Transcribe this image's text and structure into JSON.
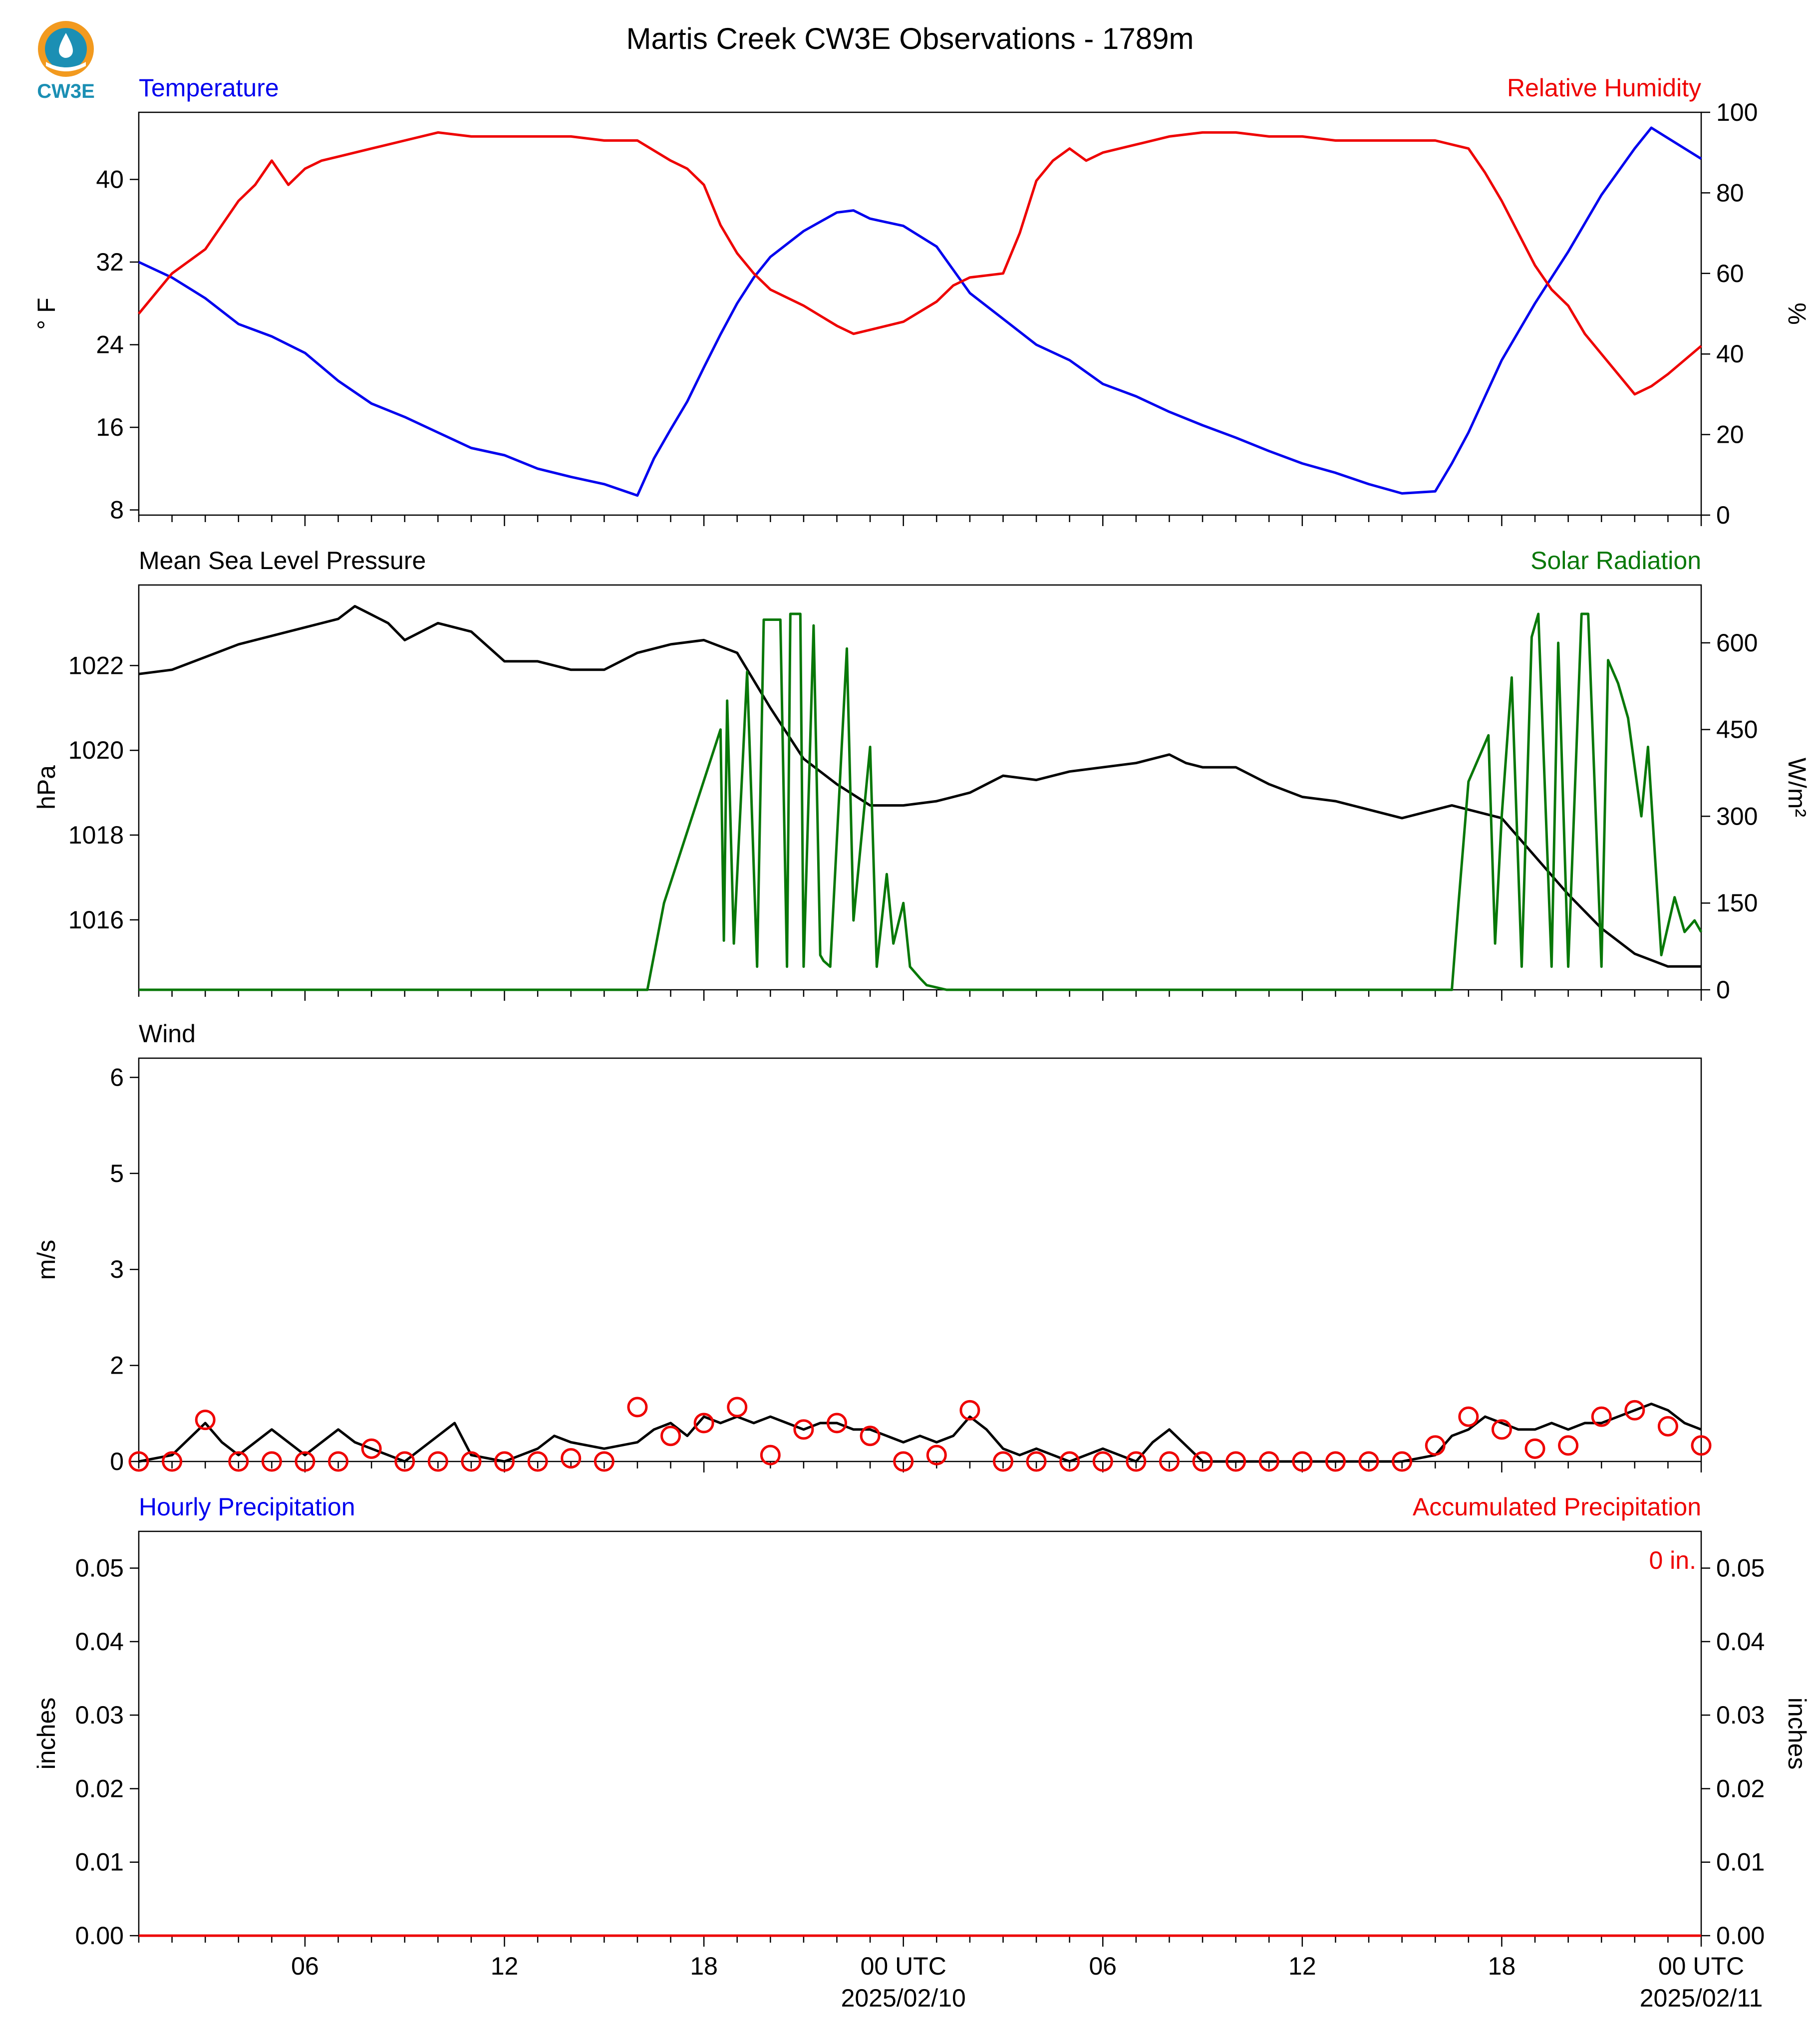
{
  "title": "Martis Creek CW3E Observations - 1789m",
  "logo": {
    "text": "CW3E",
    "color": "#1b8fb4",
    "accent": "#f29a1f"
  },
  "colors": {
    "temp": "#0000ee",
    "rh": "#ee0000",
    "pressure": "#000000",
    "solar": "#087808",
    "wind": "#000000",
    "gust": "#ee0000",
    "precip": "#ee0000"
  },
  "x_axis": {
    "start_hour": 1,
    "end_hour": 48,
    "ticks": [
      {
        "h": 6,
        "label": "06"
      },
      {
        "h": 12,
        "label": "12"
      },
      {
        "h": 18,
        "label": "18"
      },
      {
        "h": 24,
        "label": "00 UTC",
        "sub": "2025/02/10"
      },
      {
        "h": 30,
        "label": "06"
      },
      {
        "h": 36,
        "label": "12"
      },
      {
        "h": 42,
        "label": "18"
      },
      {
        "h": 48,
        "label": "00 UTC",
        "sub": "2025/02/11"
      }
    ]
  },
  "chart_data": [
    {
      "type": "line",
      "left_title": "Temperature",
      "right_title": "Relative Humidity",
      "ylabel": "° F",
      "y2label": "%",
      "ylim": [
        7.5,
        46.5
      ],
      "yticks": [
        8,
        16,
        24,
        32,
        40
      ],
      "y2lim": [
        0,
        100
      ],
      "y2ticks": [
        0,
        20,
        40,
        60,
        80,
        100
      ],
      "series": [
        {
          "name": "Temperature",
          "axis": "left",
          "color": "#0000ee",
          "x": [
            1,
            2,
            3,
            4,
            5,
            6,
            7,
            8,
            9,
            10,
            11,
            12,
            13,
            14,
            15,
            16,
            16.5,
            17,
            17.5,
            18,
            18.5,
            19,
            19.5,
            20,
            21,
            22,
            22.5,
            23,
            24,
            25,
            26,
            27,
            28,
            29,
            30,
            31,
            32,
            33,
            34,
            35,
            36,
            37,
            38,
            39,
            40,
            40.5,
            41,
            41.5,
            42,
            43,
            44,
            45,
            46,
            46.5,
            47,
            48
          ],
          "y": [
            32,
            30.5,
            28.5,
            26,
            24.8,
            23.2,
            20.5,
            18.3,
            17,
            15.5,
            14,
            13.3,
            12,
            11.2,
            10.5,
            9.4,
            13,
            15.8,
            18.5,
            21.8,
            25,
            28,
            30.5,
            32.5,
            35,
            36.8,
            37,
            36.2,
            35.5,
            33.5,
            29,
            26.5,
            24,
            22.5,
            20.2,
            19,
            17.5,
            16.2,
            15,
            13.7,
            12.5,
            11.6,
            10.5,
            9.6,
            9.8,
            12.5,
            15.5,
            19,
            22.5,
            28,
            33,
            38.5,
            43,
            45,
            44,
            42
          ]
        },
        {
          "name": "Relative Humidity",
          "axis": "right",
          "color": "#ee0000",
          "x": [
            1,
            1.5,
            2,
            2.5,
            3,
            3.5,
            4,
            4.5,
            5,
            5.5,
            6,
            6.5,
            7,
            8,
            9,
            10,
            11,
            12,
            13,
            14,
            15,
            16,
            17,
            17.5,
            18,
            18.5,
            19,
            19.5,
            20,
            21,
            22,
            22.5,
            23,
            24,
            25,
            25.5,
            26,
            27,
            27.5,
            28,
            28.5,
            29,
            29.5,
            30,
            31,
            32,
            33,
            34,
            35,
            36,
            37,
            38,
            39,
            40,
            41,
            41.5,
            42,
            42.5,
            43,
            43.5,
            44,
            44.5,
            45,
            45.5,
            46,
            46.5,
            47,
            48
          ],
          "y": [
            50,
            55,
            60,
            63,
            66,
            72,
            78,
            82,
            88,
            82,
            86,
            88,
            89,
            91,
            93,
            95,
            94,
            94,
            94,
            94,
            93,
            93,
            88,
            86,
            82,
            72,
            65,
            60,
            56,
            52,
            47,
            45,
            46,
            48,
            53,
            57,
            59,
            60,
            70,
            83,
            88,
            91,
            88,
            90,
            92,
            94,
            95,
            95,
            94,
            94,
            93,
            93,
            93,
            93,
            91,
            85,
            78,
            70,
            62,
            56,
            52,
            45,
            40,
            35,
            30,
            32,
            35,
            42
          ]
        }
      ]
    },
    {
      "type": "line",
      "left_title": "Mean Sea Level Pressure",
      "right_title": "Solar Radiation",
      "ylabel": "hPa",
      "y2label": "W/m²",
      "ylim": [
        1014.35,
        1023.9
      ],
      "yticks": [
        1016,
        1018,
        1020,
        1022
      ],
      "y2lim": [
        0,
        700
      ],
      "y2ticks": [
        0,
        150,
        300,
        450,
        600
      ],
      "series": [
        {
          "name": "Mean Sea Level Pressure",
          "axis": "left",
          "color": "#000000",
          "x": [
            1,
            2,
            3,
            4,
            5,
            6,
            7,
            7.5,
            8,
            8.5,
            9,
            10,
            11,
            12,
            13,
            14,
            15,
            16,
            17,
            18,
            19,
            20,
            21,
            22,
            23,
            24,
            25,
            26,
            27,
            28,
            29,
            30,
            31,
            32,
            32.5,
            33,
            34,
            35,
            36,
            37,
            38,
            39,
            40,
            40.5,
            41,
            42,
            43,
            44,
            45,
            46,
            47,
            48
          ],
          "y": [
            1021.8,
            1021.9,
            1022.2,
            1022.5,
            1022.7,
            1022.9,
            1023.1,
            1023.4,
            1023.2,
            1023.0,
            1022.6,
            1023.0,
            1022.8,
            1022.1,
            1022.1,
            1021.9,
            1021.9,
            1022.3,
            1022.5,
            1022.6,
            1022.3,
            1021.0,
            1019.8,
            1019.2,
            1018.7,
            1018.7,
            1018.8,
            1019.0,
            1019.4,
            1019.3,
            1019.5,
            1019.6,
            1019.7,
            1019.9,
            1019.7,
            1019.6,
            1019.6,
            1019.2,
            1018.9,
            1018.8,
            1018.6,
            1018.4,
            1018.6,
            1018.7,
            1018.6,
            1018.4,
            1017.5,
            1016.6,
            1015.8,
            1015.2,
            1014.9,
            1014.9
          ]
        },
        {
          "name": "Solar Radiation",
          "axis": "right",
          "color": "#087808",
          "x": [
            1,
            16.3,
            16.8,
            18.5,
            18.6,
            18.7,
            18.9,
            19.3,
            19.6,
            19.8,
            20.3,
            20.5,
            20.6,
            20.9,
            21.0,
            21.3,
            21.5,
            21.6,
            21.8,
            22.3,
            22.5,
            23.0,
            23.2,
            23.5,
            23.7,
            24.0,
            24.2,
            24.5,
            24.7,
            25.3,
            26.5,
            40.5,
            40.7,
            41.0,
            41.6,
            41.8,
            42.0,
            42.3,
            42.6,
            42.9,
            43.1,
            43.5,
            43.7,
            44.0,
            44.4,
            44.6,
            45.0,
            45.2,
            45.5,
            45.8,
            46.2,
            46.4,
            46.8,
            47.2,
            47.5,
            47.8,
            48
          ],
          "y": [
            0,
            0,
            150,
            450,
            85,
            500,
            80,
            550,
            40,
            640,
            640,
            40,
            650,
            650,
            40,
            630,
            60,
            50,
            40,
            590,
            120,
            420,
            40,
            200,
            80,
            150,
            40,
            20,
            8,
            0,
            0,
            0,
            150,
            360,
            440,
            80,
            300,
            540,
            40,
            610,
            650,
            40,
            600,
            40,
            650,
            650,
            40,
            570,
            530,
            470,
            300,
            420,
            60,
            160,
            100,
            120,
            100
          ]
        }
      ]
    },
    {
      "type": "line",
      "left_title": "Wind",
      "right_title": "",
      "ylabel": "m/s",
      "ylim": [
        0,
        6.3
      ],
      "yticks": [
        0.0,
        1.5,
        3.0,
        4.5,
        6.0
      ],
      "series": [
        {
          "name": "Wind",
          "axis": "left",
          "color": "#000000",
          "x": [
            1,
            2,
            3,
            3.5,
            4,
            5,
            5.5,
            6,
            7,
            7.5,
            8,
            9,
            10,
            10.5,
            11,
            12,
            13,
            13.5,
            14,
            15,
            16,
            16.5,
            17,
            17.5,
            18,
            18.5,
            19,
            19.5,
            20,
            20.5,
            21,
            21.5,
            22,
            22.5,
            23,
            23.5,
            24,
            24.5,
            25,
            25.5,
            26,
            26.5,
            27,
            27.5,
            28,
            29,
            30,
            31,
            31.5,
            32,
            33,
            34,
            35,
            36,
            37,
            38,
            39,
            40,
            40.5,
            41,
            41.5,
            42,
            42.5,
            43,
            43.5,
            44,
            44.5,
            45,
            45.5,
            46,
            46.5,
            47,
            47.5,
            48
          ],
          "y": [
            0,
            0.1,
            0.6,
            0.3,
            0.1,
            0.5,
            0.3,
            0.1,
            0.5,
            0.3,
            0.2,
            0,
            0.4,
            0.6,
            0.1,
            0,
            0.2,
            0.4,
            0.3,
            0.2,
            0.3,
            0.5,
            0.6,
            0.4,
            0.7,
            0.6,
            0.7,
            0.6,
            0.7,
            0.6,
            0.5,
            0.6,
            0.6,
            0.5,
            0.5,
            0.4,
            0.3,
            0.4,
            0.3,
            0.4,
            0.7,
            0.5,
            0.2,
            0.1,
            0.2,
            0,
            0.2,
            0,
            0.3,
            0.5,
            0,
            0,
            0,
            0,
            0,
            0,
            0,
            0.1,
            0.4,
            0.5,
            0.7,
            0.6,
            0.5,
            0.5,
            0.6,
            0.5,
            0.6,
            0.6,
            0.7,
            0.8,
            0.9,
            0.8,
            0.6,
            0.5
          ]
        },
        {
          "name": "Gust",
          "axis": "left",
          "color": "#ee0000",
          "x": [
            1,
            2,
            3,
            4,
            5,
            6,
            7,
            8,
            9,
            10,
            11,
            12,
            13,
            14,
            15,
            16,
            17,
            18,
            19,
            20,
            21,
            22,
            23,
            24,
            25,
            26,
            27,
            28,
            29,
            30,
            31,
            32,
            33,
            34,
            35,
            36,
            37,
            38,
            39,
            40,
            41,
            42,
            43,
            44,
            45,
            46,
            47,
            48
          ],
          "y": [
            0,
            0,
            0.65,
            0,
            0,
            0,
            0,
            0.2,
            0,
            0,
            0,
            0,
            0,
            0.05,
            0,
            0.85,
            0.4,
            0.6,
            0.85,
            0.1,
            0.5,
            0.6,
            0.4,
            0,
            0.1,
            0.8,
            0,
            0,
            0,
            0,
            0,
            0,
            0,
            0,
            0,
            0,
            0,
            0,
            0,
            0.25,
            0.7,
            0.5,
            0.2,
            0.25,
            0.7,
            0.8,
            0.55,
            0.25
          ]
        }
      ]
    },
    {
      "type": "line",
      "left_title": "Hourly Precipitation",
      "right_title": "Accumulated Precipitation",
      "ylabel": "inches",
      "y2label": "inches",
      "ylim": [
        0,
        0.055
      ],
      "yticks": [
        0.0,
        0.01,
        0.02,
        0.03,
        0.04,
        0.05
      ],
      "y2lim": [
        0,
        0.055
      ],
      "y2ticks": [
        0.0,
        0.01,
        0.02,
        0.03,
        0.04,
        0.05
      ],
      "annotation": "0 in.",
      "series": [
        {
          "name": "Accumulated Precipitation",
          "axis": "right",
          "color": "#ee0000",
          "x": [
            1,
            48
          ],
          "y": [
            0,
            0
          ]
        }
      ]
    }
  ]
}
